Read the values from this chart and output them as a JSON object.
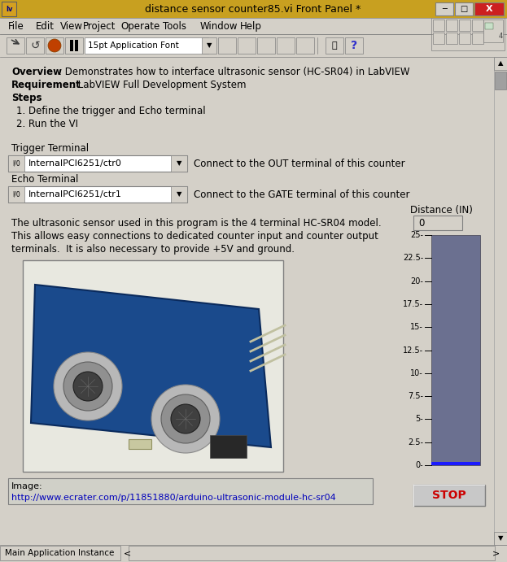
{
  "title": "distance sensor counter85.vi Front Panel *",
  "bg_color": "#d4d0c8",
  "title_bar_color": "#c8a020",
  "overview_bold": "Overview",
  "overview_rest": ": Demonstrates how to interface ultrasonic sensor (HC-SR04) in LabVIEW",
  "req_bold": "Requirement",
  "req_rest": ": LabVIEW Full Development System",
  "steps_bold": "Steps",
  "steps_rest": ":",
  "step1": "1. Define the trigger and Echo terminal",
  "step2": "2. Run the VI",
  "trigger_label": "Trigger Terminal",
  "trigger_value": "InternalPCI6251/ctr0",
  "trigger_desc": "Connect to the OUT terminal of this counter",
  "echo_label": "Echo Terminal",
  "echo_value": "InternalPCI6251/ctr1",
  "echo_desc": "Connect to the GATE terminal of this counter",
  "body_text1": "The ultrasonic sensor used in this program is the 4 terminal HC-SR04 model.",
  "body_text2": "This allows easy connections to dedicated counter input and counter output",
  "body_text3": "terminals.  It is also necessary to provide +5V and ground.",
  "image_label": "Image:",
  "image_url": "http://www.ecrater.com/p/11851880/arduino-ultrasonic-module-hc-sr04",
  "distance_label": "Distance (IN)",
  "distance_value": "0",
  "gauge_color": "#6b7090",
  "gauge_indicator_color": "#1a1aff",
  "stop_text": "STOP",
  "stop_color": "#cc0000",
  "menubar_items": [
    "File",
    "Edit",
    "View",
    "Project",
    "Operate",
    "Tools",
    "Window",
    "Help"
  ],
  "toolbar_font": "15pt Application Font"
}
